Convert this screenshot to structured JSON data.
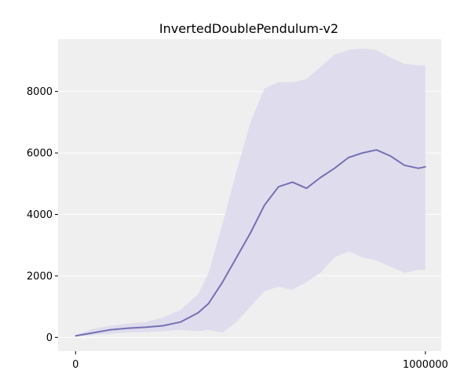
{
  "chart_data": {
    "type": "line",
    "title": "InvertedDoublePendulum-v2",
    "xlabel": "",
    "ylabel": "",
    "xlim": [
      -50000,
      1045000
    ],
    "ylim": [
      -450,
      9700
    ],
    "x_ticks": [
      0,
      1000000
    ],
    "x_tick_labels": [
      "0",
      "1000000"
    ],
    "y_ticks": [
      0,
      2000,
      4000,
      6000,
      8000
    ],
    "y_tick_labels": [
      "0",
      "2000",
      "4000",
      "6000",
      "8000"
    ],
    "grid": true,
    "colors": {
      "background": "#efefef",
      "grid": "#ffffff",
      "line": "#7570b3",
      "band": "#dcd9ec"
    },
    "series": [
      {
        "x": [
          0,
          50000,
          100000,
          150000,
          200000,
          250000,
          300000,
          350000,
          380000,
          420000,
          460000,
          500000,
          540000,
          580000,
          620000,
          660000,
          700000,
          740000,
          780000,
          820000,
          860000,
          900000,
          940000,
          980000,
          1000000
        ],
        "y": [
          50,
          150,
          250,
          300,
          330,
          380,
          500,
          800,
          1100,
          1800,
          2600,
          3400,
          4300,
          4900,
          5050,
          4850,
          5200,
          5500,
          5850,
          6000,
          6100,
          5900,
          5600,
          5500,
          5550
        ],
        "band_upper": [
          70,
          280,
          380,
          450,
          500,
          650,
          900,
          1400,
          2100,
          3700,
          5400,
          7000,
          8100,
          8300,
          8300,
          8400,
          8800,
          9200,
          9350,
          9400,
          9350,
          9100,
          8900,
          8850,
          8850
        ],
        "band_lower": [
          30,
          80,
          120,
          160,
          170,
          200,
          250,
          200,
          250,
          150,
          500,
          1000,
          1500,
          1650,
          1550,
          1800,
          2100,
          2600,
          2800,
          2600,
          2500,
          2300,
          2100,
          2200,
          2200
        ]
      }
    ]
  }
}
